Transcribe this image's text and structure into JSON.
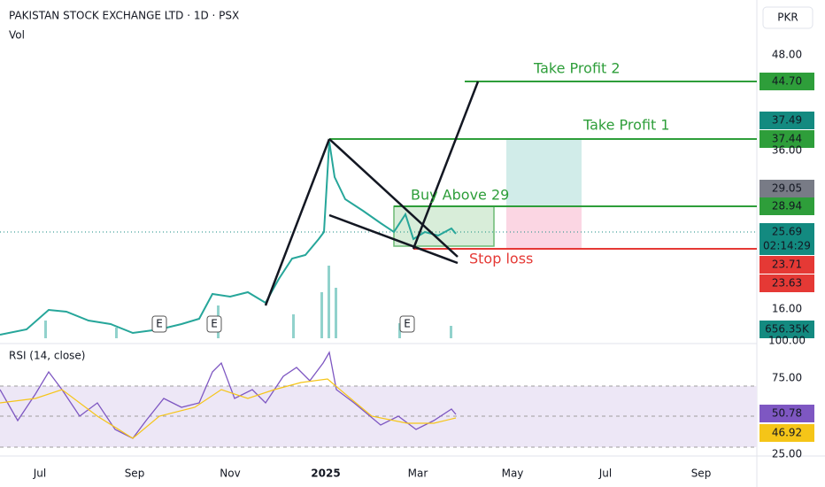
{
  "header": {
    "title": "PAKISTAN STOCK EXCHANGE LTD · 1D · PSX",
    "volume_label": "Vol",
    "currency": "PKR"
  },
  "price_axis": [
    {
      "text": "48.00",
      "color": null
    },
    {
      "text": "44.70",
      "color": "#2e9e3a"
    },
    {
      "text": "37.49",
      "color": "#138a80"
    },
    {
      "text": "37.44",
      "color": "#2e9e3a"
    },
    {
      "text": "36.00",
      "color": null
    },
    {
      "text": "29.05",
      "color": "#787b86"
    },
    {
      "text": "28.94",
      "color": "#2e9e3a"
    },
    {
      "text": "25.69",
      "color": "#138a80"
    },
    {
      "text": "02:14:29",
      "color": "#138a80"
    },
    {
      "text": "23.71",
      "color": "#e53935"
    },
    {
      "text": "23.63",
      "color": "#e53935"
    },
    {
      "text": "16.00",
      "color": null
    },
    {
      "text": "656.35K",
      "color": "#138a80"
    },
    {
      "text": "100.00",
      "color": null
    }
  ],
  "annotations": {
    "take_profit_2": "Take Profit 2",
    "take_profit_1": "Take Profit 1",
    "buy": "Buy Above 29",
    "stop": "Stop loss"
  },
  "earnings": [
    "E",
    "E",
    "E"
  ],
  "rsi": {
    "label": "RSI (14, close)",
    "axis": [
      {
        "text": "75.00",
        "color": null
      },
      {
        "text": "50.78",
        "color": "#7e57c2"
      },
      {
        "text": "46.92",
        "color": "#f5c518"
      },
      {
        "text": "25.00",
        "color": null
      }
    ]
  },
  "time_axis": [
    "Jul",
    "Sep",
    "Nov",
    "2025",
    "Mar",
    "May",
    "Jul",
    "Sep"
  ]
}
